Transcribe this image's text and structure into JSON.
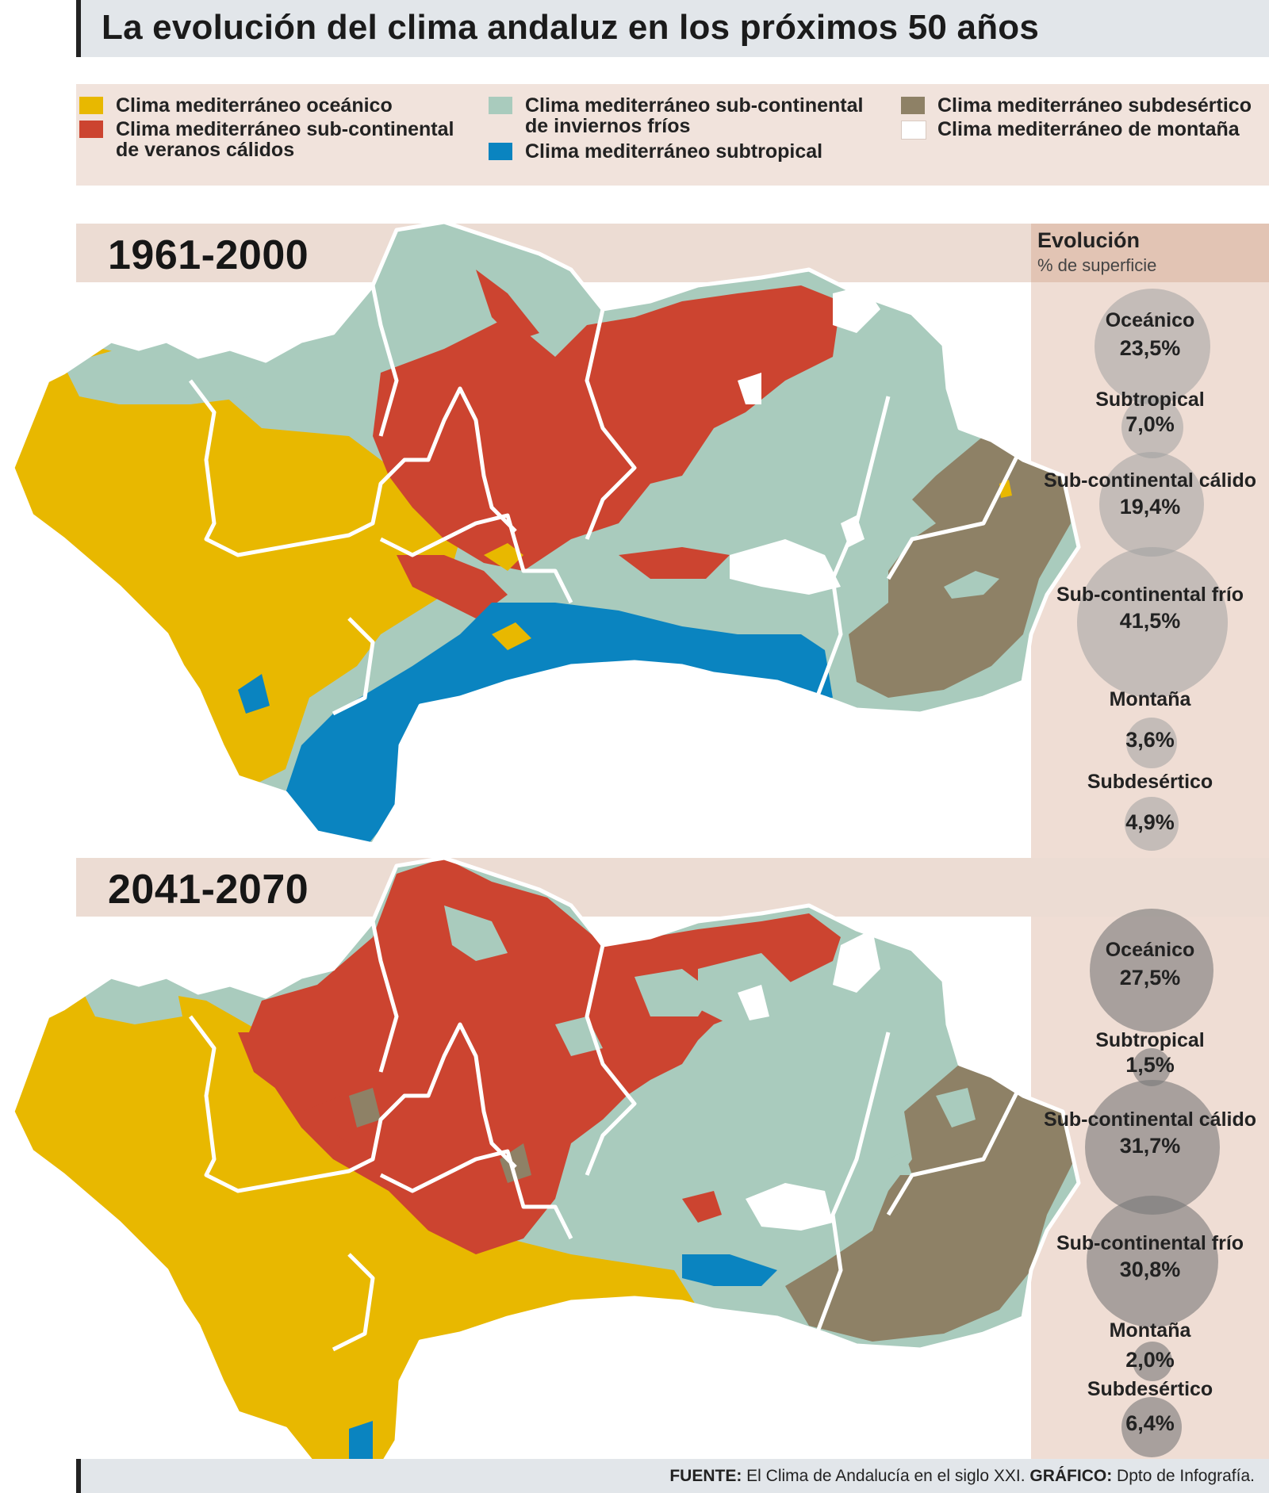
{
  "title": "La evolución del clima andaluz en los próximos 50 años",
  "legend": {
    "items": [
      {
        "label": "Clima mediterráneo oceánico",
        "color": "#e8b800"
      },
      {
        "label": "Clima mediterráneo sub-continental",
        "label2": "de veranos cálidos",
        "color": "#cc4430"
      },
      {
        "label": "Clima mediterráneo sub-continental",
        "label2": "de inviernos fríos",
        "color": "#a9cbbd"
      },
      {
        "label": "Clima mediterráneo subtropical",
        "color": "#0a84c0"
      },
      {
        "label": "Clima mediterráneo subdesértico",
        "color": "#8e8166"
      },
      {
        "label": "Clima mediterráneo de montaña",
        "color": "#ffffff"
      }
    ]
  },
  "periods": [
    {
      "label": "1961-2000"
    },
    {
      "label": "2041-2070"
    }
  ],
  "evolution": {
    "title": "Evolución",
    "subtitle": "% de superficie",
    "p1": [
      {
        "name": "Oceánico",
        "value": "23,5%",
        "pct": 23.5
      },
      {
        "name": "Subtropical",
        "value": "7,0%",
        "pct": 7.0
      },
      {
        "name": "Sub-continental cálido",
        "value": "19,4%",
        "pct": 19.4
      },
      {
        "name": "Sub-continental frío",
        "value": "41,5%",
        "pct": 41.5
      },
      {
        "name": "Montaña",
        "value": "3,6%",
        "pct": 3.6
      },
      {
        "name": "Subdesértico",
        "value": "4,9%",
        "pct": 4.9
      }
    ],
    "p2": [
      {
        "name": "Oceánico",
        "value": "27,5%",
        "pct": 27.5
      },
      {
        "name": "Subtropical",
        "value": "1,5%",
        "pct": 1.5
      },
      {
        "name": "Sub-continental cálido",
        "value": "31,7%",
        "pct": 31.7
      },
      {
        "name": "Sub-continental frío",
        "value": "30,8%",
        "pct": 30.8
      },
      {
        "name": "Montaña",
        "value": "2,0%",
        "pct": 2.0
      },
      {
        "name": "Subdesértico",
        "value": "6,4%",
        "pct": 6.4
      }
    ]
  },
  "footer": {
    "source_label": "FUENTE:",
    "source_text": " El Clima de Andalucía en el siglo XXI. ",
    "graphic_label": "GRÁFICO:",
    "graphic_text": " Dpto de Infografía."
  }
}
